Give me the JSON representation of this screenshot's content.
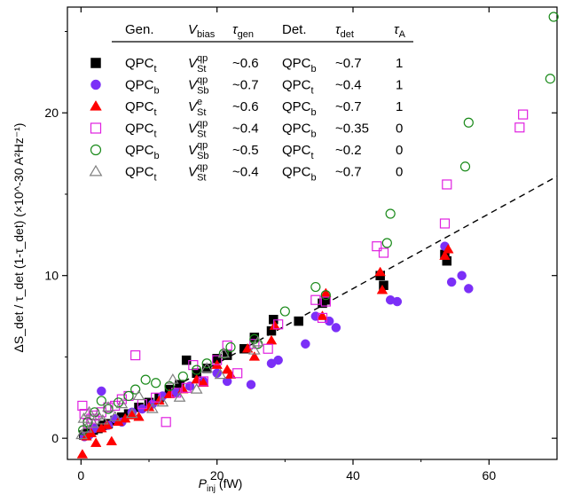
{
  "chart_data": {
    "type": "scatter",
    "xlabel": {
      "main": "P",
      "sub": "inj",
      "unit": " (fW)"
    },
    "ylabel": {
      "text": "ΔS_det / τ_det (1-τ_det) (×10^-30 A²Hz⁻¹)"
    },
    "xlim": [
      -2,
      70
    ],
    "ylim": [
      -1.3,
      26.5
    ],
    "xticks": [
      0,
      20,
      40,
      60
    ],
    "yticks": [
      0,
      10,
      20
    ],
    "legend_placement": "top-left",
    "legend_headers": {
      "gen": "Gen.",
      "vbias": {
        "main": "V",
        "sub": "bias"
      },
      "taugen": {
        "main": "τ",
        "sub": "gen"
      },
      "det": "Det.",
      "taudet": {
        "main": "τ",
        "sub": "det"
      },
      "taua": {
        "main": "τ",
        "sub": "A"
      }
    },
    "fit_line": {
      "style": "dashed",
      "color": "#000000",
      "x": [
        0,
        70
      ],
      "y": [
        0,
        16.1
      ]
    },
    "series": [
      {
        "marker": "filled-square",
        "color": "#000000",
        "gen": {
          "main": "QPC",
          "sub": "t"
        },
        "vbias": {
          "main": "V",
          "sub": "St",
          "sup": "qp"
        },
        "tau_gen": "~0.6",
        "det": {
          "main": "QPC",
          "sub": "b"
        },
        "tau_det": "~0.7",
        "tau_a": "1",
        "x": [
          0.4,
          1.0,
          1.8,
          2.5,
          3.2,
          4.0,
          5.0,
          6.0,
          7.0,
          8.5,
          10.0,
          11.5,
          13.0,
          14.5,
          15.5,
          17.0,
          18.5,
          20.0,
          21.5,
          24.0,
          25.5,
          28.0,
          28.3,
          32.0,
          35.5,
          36.0,
          44.0,
          44.5,
          53.5,
          53.8
        ],
        "y": [
          0.2,
          0.3,
          0.5,
          0.6,
          0.8,
          0.9,
          1.1,
          1.3,
          1.5,
          1.9,
          2.2,
          2.5,
          3.0,
          3.3,
          4.8,
          4.0,
          4.3,
          4.9,
          5.1,
          5.5,
          6.2,
          6.6,
          7.3,
          7.2,
          8.3,
          8.5,
          10.0,
          9.4,
          11.3,
          10.9
        ]
      },
      {
        "marker": "filled-circle",
        "color": "#7b2ff7",
        "gen": {
          "main": "QPC",
          "sub": "b"
        },
        "vbias": {
          "main": "V",
          "sub": "Sb",
          "sup": "qp"
        },
        "tau_gen": "~0.7",
        "det": {
          "main": "QPC",
          "sub": "t"
        },
        "tau_det": "~0.4",
        "tau_a": "1",
        "x": [
          0.5,
          1.2,
          2.0,
          3.0,
          4.0,
          5.0,
          6.0,
          7.5,
          9.0,
          10.5,
          12.0,
          14.0,
          16.0,
          18.0,
          20.0,
          21.5,
          25.0,
          28.0,
          29.0,
          33.0,
          34.5,
          36.5,
          37.5,
          45.5,
          46.5,
          53.5,
          54.5,
          56.0,
          57.0
        ],
        "y": [
          0.1,
          0.2,
          0.6,
          2.9,
          0.8,
          1.2,
          1.0,
          1.6,
          1.8,
          2.1,
          2.6,
          2.8,
          3.2,
          3.5,
          4.0,
          3.5,
          3.3,
          4.6,
          4.8,
          5.8,
          7.5,
          7.2,
          6.8,
          8.5,
          8.4,
          11.8,
          9.6,
          10.0,
          9.2
        ]
      },
      {
        "marker": "filled-triangle",
        "color": "#ff0000",
        "gen": {
          "main": "QPC",
          "sub": "t"
        },
        "vbias": {
          "main": "V",
          "sub": "St",
          "sup": "e"
        },
        "tau_gen": "~0.6",
        "det": {
          "main": "QPC",
          "sub": "b"
        },
        "tau_det": "~0.7",
        "tau_a": "1",
        "x": [
          0.2,
          0.8,
          1.5,
          2.2,
          3.0,
          3.8,
          4.5,
          5.5,
          6.5,
          7.5,
          8.5,
          10.0,
          11.5,
          13.0,
          15.0,
          17.0,
          18.0,
          20.0,
          21.5,
          22.0,
          24.5,
          25.5,
          28.0,
          28.5,
          35.5,
          36.0,
          44.0,
          44.3,
          53.5,
          54.0
        ],
        "y": [
          -1.0,
          0.1,
          0.3,
          -0.3,
          0.6,
          0.8,
          -0.2,
          1.0,
          1.2,
          1.4,
          1.3,
          1.9,
          2.3,
          2.7,
          3.0,
          3.6,
          3.4,
          4.5,
          4.2,
          3.9,
          5.5,
          5.0,
          6.0,
          6.9,
          7.5,
          8.9,
          10.2,
          9.1,
          11.2,
          11.6
        ]
      },
      {
        "marker": "open-square",
        "color": "#e020e0",
        "gen": {
          "main": "QPC",
          "sub": "t"
        },
        "vbias": {
          "main": "V",
          "sub": "St",
          "sup": "qp"
        },
        "tau_gen": "~0.4",
        "det": {
          "main": "QPC",
          "sub": "b"
        },
        "tau_det": "~0.35",
        "tau_a": "0",
        "x": [
          0.2,
          0.5,
          1.0,
          1.5,
          2.0,
          3.0,
          4.0,
          5.0,
          6.0,
          7.0,
          8.0,
          9.0,
          11.0,
          12.5,
          14.0,
          15.5,
          16.5,
          18.0,
          20.0,
          21.5,
          23.0,
          25.5,
          27.5,
          29.0,
          34.5,
          35.5,
          36.0,
          43.5,
          44.5,
          53.5,
          53.8,
          64.5,
          65.0
        ],
        "y": [
          2.0,
          1.5,
          0.9,
          1.2,
          1.4,
          1.6,
          1.9,
          2.0,
          2.4,
          2.6,
          5.1,
          2.1,
          2.5,
          1.0,
          2.8,
          3.1,
          4.5,
          3.5,
          4.8,
          5.7,
          4.0,
          5.8,
          5.5,
          7.0,
          8.5,
          7.4,
          8.4,
          11.8,
          11.4,
          13.2,
          15.6,
          19.1,
          19.9
        ]
      },
      {
        "marker": "open-circle",
        "color": "#1a8a1a",
        "gen": {
          "main": "QPC",
          "sub": "b"
        },
        "vbias": {
          "main": "V",
          "sub": "Sb",
          "sup": "qp"
        },
        "tau_gen": "~0.5",
        "det": {
          "main": "QPC",
          "sub": "t"
        },
        "tau_det": "~0.2",
        "tau_a": "0",
        "x": [
          0.3,
          1.0,
          2.0,
          3.0,
          4.0,
          5.5,
          7.0,
          8.0,
          9.5,
          11.0,
          13.0,
          15.0,
          17.0,
          18.5,
          21.0,
          22.0,
          25.5,
          26.0,
          30.0,
          34.5,
          36.0,
          45.0,
          45.5,
          56.5,
          57.0,
          69.0,
          69.5
        ],
        "y": [
          0.5,
          1.0,
          1.6,
          2.3,
          1.8,
          2.2,
          2.6,
          3.0,
          3.6,
          3.4,
          3.2,
          3.8,
          4.2,
          4.6,
          5.2,
          5.6,
          6.1,
          5.8,
          7.8,
          9.3,
          8.8,
          12.0,
          13.8,
          16.7,
          19.4,
          22.1,
          25.9
        ]
      },
      {
        "marker": "open-triangle",
        "color": "#808080",
        "gen": {
          "main": "QPC",
          "sub": "t"
        },
        "vbias": {
          "main": "V",
          "sub": "St",
          "sup": "qp"
        },
        "tau_gen": "~0.4",
        "det": {
          "main": "QPC",
          "sub": "b"
        },
        "tau_det": "~0.7",
        "tau_a": "0",
        "x": [
          0.1,
          0.4,
          0.8,
          1.2,
          1.8,
          2.5,
          3.2,
          4.0,
          5.0,
          6.0,
          7.5,
          8.5,
          10.5,
          12.0,
          13.5,
          14.5,
          17.0,
          18.5,
          20.5,
          21.0,
          25.5,
          26.0
        ],
        "y": [
          0.2,
          1.2,
          0.6,
          1.6,
          0.9,
          1.4,
          1.1,
          1.9,
          1.3,
          2.1,
          1.5,
          2.6,
          1.8,
          2.2,
          3.6,
          2.5,
          3.0,
          4.3,
          3.9,
          5.2,
          5.4,
          5.9
        ]
      }
    ]
  }
}
